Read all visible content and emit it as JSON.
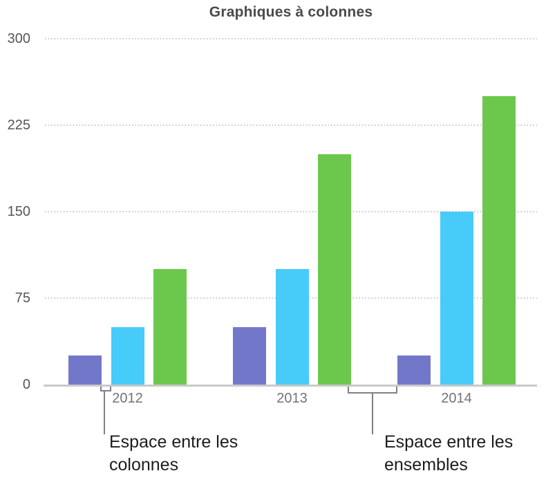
{
  "chart_data": {
    "type": "bar",
    "title": "Graphiques à colonnes",
    "categories": [
      "2012",
      "2013",
      "2014"
    ],
    "series": [
      {
        "color": "#7377C9",
        "values": [
          25,
          50,
          25
        ]
      },
      {
        "color": "#47CBF8",
        "values": [
          50,
          100,
          150
        ]
      },
      {
        "color": "#6CC84D",
        "values": [
          100,
          200,
          250
        ]
      }
    ],
    "yticks": [
      0,
      75,
      150,
      225,
      300
    ],
    "ylim": [
      0,
      300
    ],
    "xlabel": "",
    "ylabel": "",
    "grid": "horizontal-dotted",
    "legend": "none"
  },
  "annotations": [
    {
      "line1": "Espace entre les",
      "line2": "colonnes"
    },
    {
      "line1": "Espace entre les",
      "line2": "ensembles"
    }
  ],
  "colors": {
    "title_text": "#4a4a4c",
    "y_tick_text": "#565659",
    "x_tick_text": "#737377",
    "gridline": "#c6c6c8",
    "axis_baseline": "#c9c9cb",
    "callout_lines": "#808083",
    "annotation_text": "#1c1c1e"
  }
}
